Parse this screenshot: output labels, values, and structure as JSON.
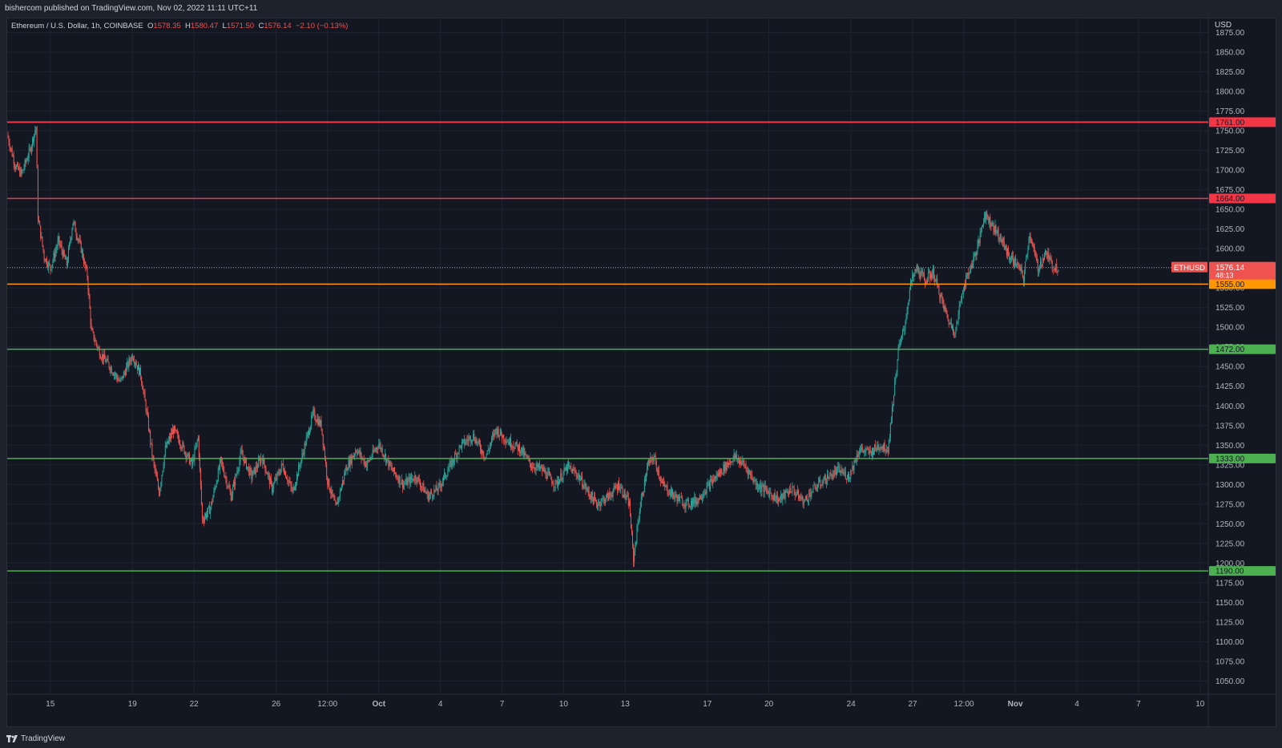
{
  "header": {
    "published_text": "bishercom published on TradingView.com, Nov 02, 2022 11:11 UTC+11"
  },
  "legend": {
    "symbol": "Ethereum / U.S. Dollar, 1h, COINBASE",
    "open_label": "O",
    "open_value": "1578.35",
    "high_label": "H",
    "high_value": "1580.47",
    "low_label": "L",
    "low_value": "1571.50",
    "close_label": "C",
    "close_value": "1576.14",
    "change": "−2.10 (−0.13%)"
  },
  "footer": {
    "brand": "TradingView"
  },
  "colors": {
    "background": "#131722",
    "grid": "#1f2430",
    "up": "#26a69a",
    "down": "#ef5350",
    "resistance": "#f23645",
    "support_orange": "#ff9800",
    "support_green": "#4caf50"
  },
  "chart_data": {
    "type": "candlestick",
    "ylabel": "USD",
    "ylim": [
      1033,
      1893
    ],
    "yticks": [
      "1875.00",
      "1850.00",
      "1825.00",
      "1800.00",
      "1775.00",
      "1750.00",
      "1725.00",
      "1700.00",
      "1675.00",
      "1650.00",
      "1625.00",
      "1600.00",
      "1575.00",
      "1550.00",
      "1525.00",
      "1500.00",
      "1475.00",
      "1450.00",
      "1425.00",
      "1400.00",
      "1375.00",
      "1350.00",
      "1325.00",
      "1300.00",
      "1275.00",
      "1250.00",
      "1225.00",
      "1200.00",
      "1175.00",
      "1150.00",
      "1125.00",
      "1100.00",
      "1075.00",
      "1050.00"
    ],
    "xlim_days": [
      12.5,
      71
    ],
    "xticks": [
      {
        "label": "15",
        "day": 14.6
      },
      {
        "label": "19",
        "day": 18.6
      },
      {
        "label": "22",
        "day": 21.6
      },
      {
        "label": "26",
        "day": 25.6
      },
      {
        "label": "12:00",
        "day": 28.1
      },
      {
        "label": "Oct",
        "day": 30.6
      },
      {
        "label": "4",
        "day": 33.6
      },
      {
        "label": "7",
        "day": 36.6
      },
      {
        "label": "10",
        "day": 39.6
      },
      {
        "label": "13",
        "day": 42.6
      },
      {
        "label": "17",
        "day": 46.6
      },
      {
        "label": "20",
        "day": 49.6
      },
      {
        "label": "24",
        "day": 53.6
      },
      {
        "label": "27",
        "day": 56.6
      },
      {
        "label": "12:00",
        "day": 59.1
      },
      {
        "label": "Nov",
        "day": 61.6
      },
      {
        "label": "4",
        "day": 64.6
      },
      {
        "label": "7",
        "day": 67.6
      },
      {
        "label": "10",
        "day": 70.6
      }
    ],
    "levels": [
      {
        "value": 1761,
        "label": "1761.00",
        "color": "#f23645",
        "width": 2
      },
      {
        "value": 1664,
        "label": "1664.00",
        "color": "#f23645",
        "width": 1.5
      },
      {
        "value": 1555,
        "label": "1555.00",
        "color": "#ff9800",
        "width": 1.5
      },
      {
        "value": 1472,
        "label": "1472.00",
        "color": "#4caf50",
        "width": 1.5
      },
      {
        "value": 1333,
        "label": "1333.00",
        "color": "#4caf50",
        "width": 1.5
      },
      {
        "value": 1190,
        "label": "1190.00",
        "color": "#4caf50",
        "width": 1.5
      }
    ],
    "current_price": {
      "value": 1576.14,
      "symbol": "ETHUSD",
      "label": "1576.14",
      "countdown": "48:13"
    },
    "path": [
      {
        "d": 12.5,
        "p": 1745
      },
      {
        "d": 12.9,
        "p": 1705
      },
      {
        "d": 13.2,
        "p": 1695
      },
      {
        "d": 13.6,
        "p": 1725
      },
      {
        "d": 13.9,
        "p": 1755
      },
      {
        "d": 14.0,
        "p": 1640
      },
      {
        "d": 14.3,
        "p": 1590
      },
      {
        "d": 14.6,
        "p": 1575
      },
      {
        "d": 15.0,
        "p": 1610
      },
      {
        "d": 15.4,
        "p": 1580
      },
      {
        "d": 15.7,
        "p": 1635
      },
      {
        "d": 16.1,
        "p": 1600
      },
      {
        "d": 16.4,
        "p": 1565
      },
      {
        "d": 16.6,
        "p": 1495
      },
      {
        "d": 17.0,
        "p": 1468
      },
      {
        "d": 17.5,
        "p": 1450
      },
      {
        "d": 18.0,
        "p": 1430
      },
      {
        "d": 18.6,
        "p": 1465
      },
      {
        "d": 19.0,
        "p": 1440
      },
      {
        "d": 19.3,
        "p": 1390
      },
      {
        "d": 19.6,
        "p": 1330
      },
      {
        "d": 19.9,
        "p": 1290
      },
      {
        "d": 20.2,
        "p": 1345
      },
      {
        "d": 20.6,
        "p": 1370
      },
      {
        "d": 21.0,
        "p": 1350
      },
      {
        "d": 21.5,
        "p": 1325
      },
      {
        "d": 21.8,
        "p": 1360
      },
      {
        "d": 22.0,
        "p": 1255
      },
      {
        "d": 22.4,
        "p": 1270
      },
      {
        "d": 22.9,
        "p": 1330
      },
      {
        "d": 23.4,
        "p": 1285
      },
      {
        "d": 23.9,
        "p": 1340
      },
      {
        "d": 24.4,
        "p": 1310
      },
      {
        "d": 24.9,
        "p": 1335
      },
      {
        "d": 25.4,
        "p": 1295
      },
      {
        "d": 25.9,
        "p": 1325
      },
      {
        "d": 26.4,
        "p": 1290
      },
      {
        "d": 26.9,
        "p": 1340
      },
      {
        "d": 27.4,
        "p": 1390
      },
      {
        "d": 27.8,
        "p": 1375
      },
      {
        "d": 28.1,
        "p": 1305
      },
      {
        "d": 28.5,
        "p": 1270
      },
      {
        "d": 29.0,
        "p": 1320
      },
      {
        "d": 29.5,
        "p": 1345
      },
      {
        "d": 30.0,
        "p": 1325
      },
      {
        "d": 30.6,
        "p": 1352
      },
      {
        "d": 31.2,
        "p": 1320
      },
      {
        "d": 31.8,
        "p": 1300
      },
      {
        "d": 32.4,
        "p": 1310
      },
      {
        "d": 33.0,
        "p": 1285
      },
      {
        "d": 33.5,
        "p": 1295
      },
      {
        "d": 34.0,
        "p": 1320
      },
      {
        "d": 34.6,
        "p": 1350
      },
      {
        "d": 35.2,
        "p": 1362
      },
      {
        "d": 35.8,
        "p": 1335
      },
      {
        "d": 36.3,
        "p": 1370
      },
      {
        "d": 36.9,
        "p": 1355
      },
      {
        "d": 37.5,
        "p": 1345
      },
      {
        "d": 38.0,
        "p": 1325
      },
      {
        "d": 38.6,
        "p": 1318
      },
      {
        "d": 39.2,
        "p": 1300
      },
      {
        "d": 39.8,
        "p": 1322
      },
      {
        "d": 40.3,
        "p": 1312
      },
      {
        "d": 40.8,
        "p": 1290
      },
      {
        "d": 41.2,
        "p": 1275
      },
      {
        "d": 41.8,
        "p": 1285
      },
      {
        "d": 42.3,
        "p": 1300
      },
      {
        "d": 42.8,
        "p": 1275
      },
      {
        "d": 43.0,
        "p": 1205
      },
      {
        "d": 43.3,
        "p": 1268
      },
      {
        "d": 43.7,
        "p": 1325
      },
      {
        "d": 44.0,
        "p": 1335
      },
      {
        "d": 44.4,
        "p": 1300
      },
      {
        "d": 45.0,
        "p": 1285
      },
      {
        "d": 45.6,
        "p": 1275
      },
      {
        "d": 46.1,
        "p": 1280
      },
      {
        "d": 46.7,
        "p": 1300
      },
      {
        "d": 47.3,
        "p": 1318
      },
      {
        "d": 47.9,
        "p": 1335
      },
      {
        "d": 48.4,
        "p": 1325
      },
      {
        "d": 49.0,
        "p": 1300
      },
      {
        "d": 49.6,
        "p": 1290
      },
      {
        "d": 50.1,
        "p": 1280
      },
      {
        "d": 50.7,
        "p": 1295
      },
      {
        "d": 51.3,
        "p": 1278
      },
      {
        "d": 51.8,
        "p": 1295
      },
      {
        "d": 52.4,
        "p": 1308
      },
      {
        "d": 53.0,
        "p": 1318
      },
      {
        "d": 53.5,
        "p": 1310
      },
      {
        "d": 54.0,
        "p": 1345
      },
      {
        "d": 54.5,
        "p": 1340
      },
      {
        "d": 55.0,
        "p": 1350
      },
      {
        "d": 55.4,
        "p": 1345
      },
      {
        "d": 55.6,
        "p": 1395
      },
      {
        "d": 55.9,
        "p": 1470
      },
      {
        "d": 56.2,
        "p": 1500
      },
      {
        "d": 56.5,
        "p": 1555
      },
      {
        "d": 56.8,
        "p": 1575
      },
      {
        "d": 57.2,
        "p": 1560
      },
      {
        "d": 57.6,
        "p": 1570
      },
      {
        "d": 58.0,
        "p": 1535
      },
      {
        "d": 58.4,
        "p": 1505
      },
      {
        "d": 58.7,
        "p": 1495
      },
      {
        "d": 59.0,
        "p": 1545
      },
      {
        "d": 59.4,
        "p": 1575
      },
      {
        "d": 59.8,
        "p": 1605
      },
      {
        "d": 60.1,
        "p": 1645
      },
      {
        "d": 60.5,
        "p": 1630
      },
      {
        "d": 60.9,
        "p": 1612
      },
      {
        "d": 61.3,
        "p": 1590
      },
      {
        "d": 61.7,
        "p": 1580
      },
      {
        "d": 62.0,
        "p": 1562
      },
      {
        "d": 62.3,
        "p": 1620
      },
      {
        "d": 62.7,
        "p": 1575
      },
      {
        "d": 63.1,
        "p": 1595
      },
      {
        "d": 63.4,
        "p": 1578
      },
      {
        "d": 63.7,
        "p": 1576
      }
    ]
  }
}
